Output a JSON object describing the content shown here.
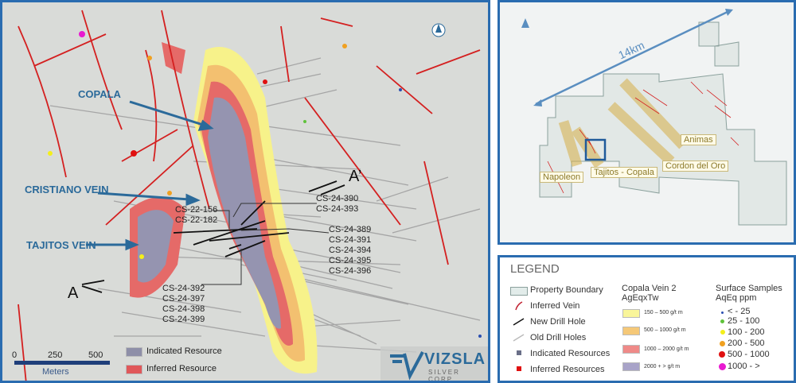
{
  "main_map": {
    "vein_labels": [
      "COPALA",
      "CRISTIANO VEIN",
      "TAJITOS VEIN"
    ],
    "section_labels": {
      "start": "A",
      "end": "A’"
    },
    "drill_labels": {
      "group1": [
        "CS-22-156",
        "CS-22-182"
      ],
      "group2": [
        "CS-24-390",
        "CS-24-393"
      ],
      "group3": [
        "CS-24-389",
        "CS-24-391",
        "CS-24-394",
        "CS-24-395",
        "CS-24-396"
      ],
      "group4": [
        "CS-24-392",
        "CS-24-397",
        "CS-24-398",
        "CS-24-399"
      ]
    },
    "scale_bar": {
      "ticks": [
        "0",
        "250",
        "500"
      ],
      "unit": "Meters"
    },
    "map_legend": [
      {
        "label": "Indicated Resource",
        "color": "#8e8fa8"
      },
      {
        "label": "Inferred Resource",
        "color": "#e0585a"
      }
    ],
    "logo": {
      "name": "VIZSLA",
      "sub": "SILVER CORP"
    },
    "north_icon": "compass-north-icon"
  },
  "inset_map": {
    "distance_label": "14km",
    "areas": [
      "Napoleon",
      "Tajitos - Copala",
      "Cordon del Oro",
      "Animas"
    ],
    "north_icon": "north-arrow-icon"
  },
  "legend": {
    "title": "LEGEND",
    "items": [
      {
        "label": "Property Boundary",
        "icon": "property-boundary-swatch"
      },
      {
        "label": "Inferred Vein",
        "icon": "vein-line-icon"
      },
      {
        "label": "New Drill Hole",
        "icon": "new-drill-line-icon"
      },
      {
        "label": "Old Drill Holes",
        "icon": "old-drill-line-icon"
      },
      {
        "label": "Indicated Resources",
        "icon": "square-icon"
      },
      {
        "label": "Inferred Resources",
        "icon": "square-icon"
      }
    ],
    "vein_title": [
      "Copala Vein 2",
      "AgEqxTw"
    ],
    "vein_ranges": [
      {
        "label": "150 – 500 g/t m",
        "color": "#f9f59a"
      },
      {
        "label": "500 – 1000 g/t m",
        "color": "#f5c878"
      },
      {
        "label": "1000 – 2000 g/t m",
        "color": "#ef8a88"
      },
      {
        "label": "2000 + > g/t m",
        "color": "#a8a3c8"
      }
    ],
    "samples_title": [
      "Surface Samples",
      "AqEq ppm"
    ],
    "samples": [
      {
        "label": "< - 25",
        "color": "#2a4fb0"
      },
      {
        "label": "25 - 100",
        "color": "#5fc23a"
      },
      {
        "label": "100 - 200",
        "color": "#f4ef1a"
      },
      {
        "label": "200 - 500",
        "color": "#f0a020"
      },
      {
        "label": "500 - 1000",
        "color": "#e01010"
      },
      {
        "label": "1000 - >",
        "color": "#e81ad0"
      }
    ]
  }
}
